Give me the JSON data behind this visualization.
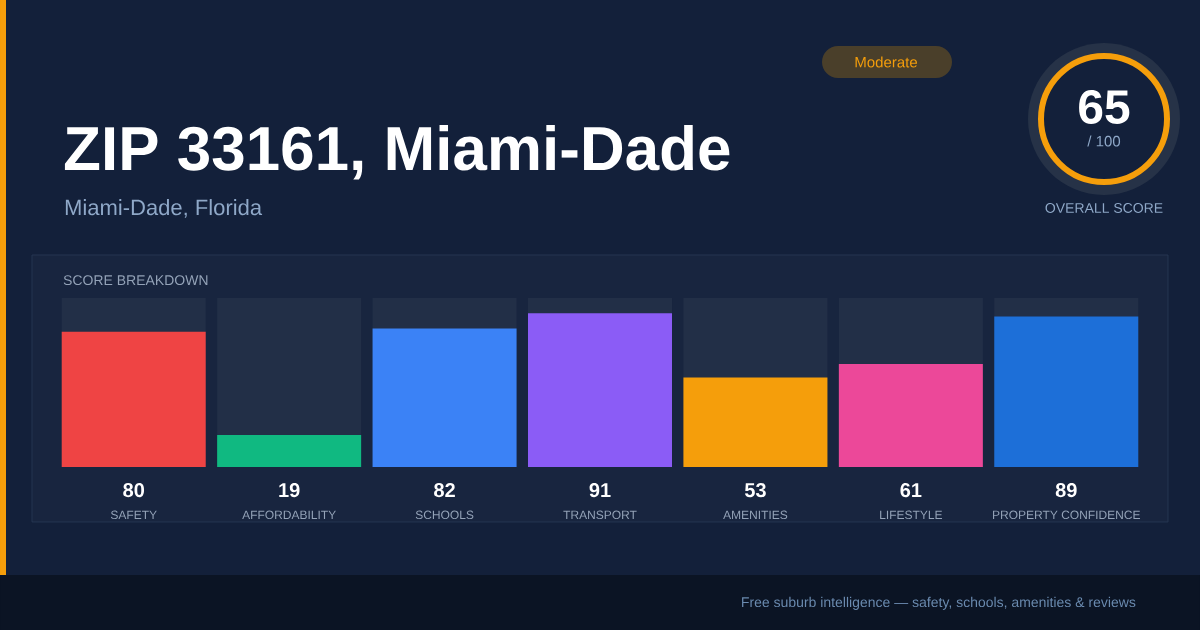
{
  "chart_data": {
    "type": "bar",
    "title": "ZIP 33161, Miami-Dade",
    "subtitle": "Miami-Dade, Florida",
    "categories": [
      "SAFETY",
      "AFFORDABILITY",
      "SCHOOLS",
      "TRANSPORT",
      "AMENITIES",
      "LIFESTYLE",
      "PROPERTY CONFIDENCE"
    ],
    "values": [
      80,
      19,
      82,
      91,
      53,
      61,
      89
    ],
    "colors": [
      "#ef4444",
      "#10b981",
      "#3b82f6",
      "#8b5cf6",
      "#f59e0b",
      "#ec4899",
      "#1d6fd8"
    ],
    "ylim": [
      0,
      100
    ],
    "data_labels": true,
    "annotations": [
      "SCORE BREAKDOWN",
      "Moderate",
      "65",
      "/ 100",
      "OVERALL SCORE",
      "Free suburb intelligence — safety, schools, amenities & reviews"
    ]
  }
}
